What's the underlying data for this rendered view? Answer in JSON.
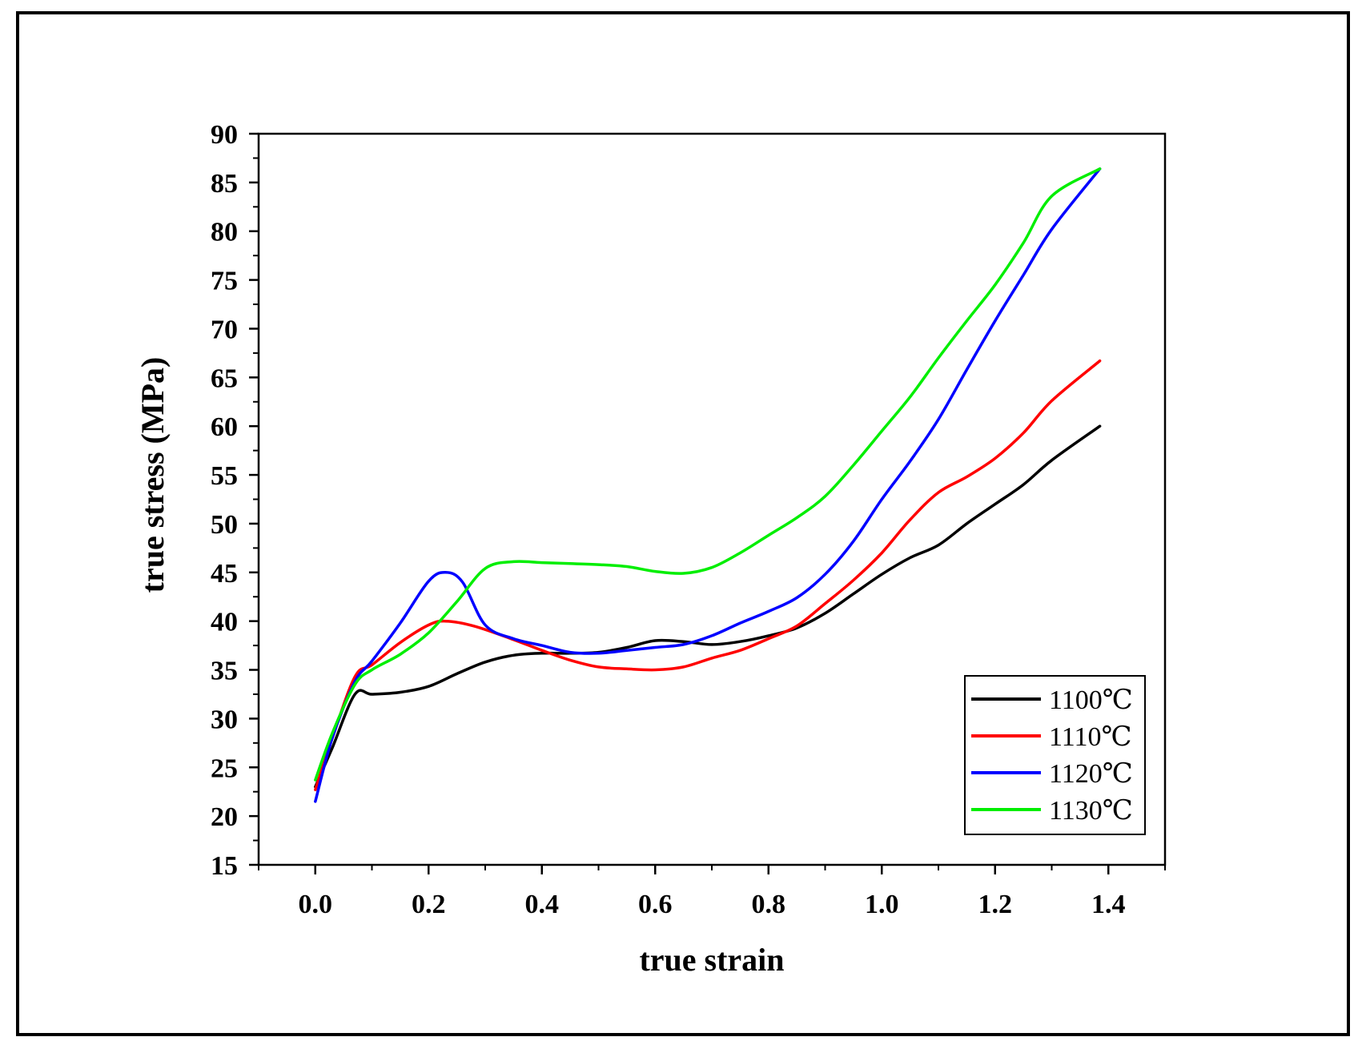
{
  "chart_data": {
    "type": "line",
    "title": "",
    "xlabel": "true strain",
    "ylabel": "true stress (MPa)",
    "xlim": [
      -0.1,
      1.5
    ],
    "ylim": [
      15,
      90
    ],
    "xticks": [
      0.0,
      0.2,
      0.4,
      0.6,
      0.8,
      1.0,
      1.2,
      1.4
    ],
    "xtick_labels": [
      "0.0",
      "0.2",
      "0.4",
      "0.6",
      "0.8",
      "1.0",
      "1.2",
      "1.4"
    ],
    "yticks": [
      15,
      20,
      25,
      30,
      35,
      40,
      45,
      50,
      55,
      60,
      65,
      70,
      75,
      80,
      85,
      90
    ],
    "ytick_labels": [
      "15",
      "20",
      "25",
      "30",
      "35",
      "40",
      "45",
      "50",
      "55",
      "60",
      "65",
      "70",
      "75",
      "80",
      "85",
      "90"
    ],
    "grid": false,
    "legend_position": "bottom-right",
    "series": [
      {
        "name": "1100℃",
        "color": "#000000",
        "x": [
          0.0,
          0.03,
          0.07,
          0.1,
          0.15,
          0.2,
          0.25,
          0.3,
          0.35,
          0.4,
          0.45,
          0.5,
          0.55,
          0.6,
          0.65,
          0.7,
          0.75,
          0.8,
          0.85,
          0.9,
          0.95,
          1.0,
          1.05,
          1.1,
          1.15,
          1.2,
          1.25,
          1.3,
          1.385
        ],
        "y": [
          23.0,
          27.0,
          32.5,
          32.5,
          32.7,
          33.3,
          34.6,
          35.8,
          36.5,
          36.7,
          36.7,
          36.8,
          37.3,
          38.0,
          37.9,
          37.6,
          37.9,
          38.5,
          39.3,
          40.8,
          42.8,
          44.8,
          46.5,
          47.8,
          50.0,
          52.0,
          54.0,
          56.5,
          60.0
        ]
      },
      {
        "name": "1110℃",
        "color": "#ff0000",
        "x": [
          0.0,
          0.03,
          0.07,
          0.1,
          0.15,
          0.2,
          0.23,
          0.28,
          0.35,
          0.4,
          0.45,
          0.5,
          0.55,
          0.6,
          0.65,
          0.7,
          0.75,
          0.8,
          0.85,
          0.9,
          0.95,
          1.0,
          1.05,
          1.1,
          1.15,
          1.2,
          1.25,
          1.3,
          1.385
        ],
        "y": [
          22.7,
          28.0,
          34.3,
          35.5,
          37.8,
          39.6,
          40.0,
          39.5,
          38.1,
          37.0,
          36.0,
          35.3,
          35.1,
          35.0,
          35.3,
          36.2,
          37.0,
          38.2,
          39.5,
          41.8,
          44.2,
          47.0,
          50.4,
          53.2,
          54.8,
          56.7,
          59.3,
          62.6,
          66.7
        ]
      },
      {
        "name": "1120℃",
        "color": "#0000ff",
        "x": [
          0.0,
          0.03,
          0.07,
          0.1,
          0.15,
          0.2,
          0.23,
          0.26,
          0.3,
          0.35,
          0.4,
          0.45,
          0.5,
          0.55,
          0.6,
          0.65,
          0.7,
          0.75,
          0.8,
          0.85,
          0.9,
          0.95,
          1.0,
          1.05,
          1.1,
          1.15,
          1.2,
          1.25,
          1.3,
          1.385
        ],
        "y": [
          21.5,
          28.0,
          33.8,
          35.9,
          39.8,
          44.1,
          45.0,
          44.0,
          39.6,
          38.2,
          37.5,
          36.8,
          36.7,
          37.0,
          37.3,
          37.6,
          38.5,
          39.8,
          41.0,
          42.4,
          44.8,
          48.2,
          52.5,
          56.4,
          60.7,
          65.8,
          70.8,
          75.5,
          80.2,
          86.4
        ]
      },
      {
        "name": "1130℃",
        "color": "#00ee00",
        "x": [
          0.0,
          0.03,
          0.07,
          0.1,
          0.15,
          0.2,
          0.25,
          0.3,
          0.35,
          0.4,
          0.45,
          0.5,
          0.55,
          0.6,
          0.65,
          0.7,
          0.75,
          0.8,
          0.85,
          0.9,
          0.95,
          1.0,
          1.05,
          1.1,
          1.15,
          1.2,
          1.25,
          1.3,
          1.385
        ],
        "y": [
          23.7,
          28.5,
          33.5,
          35.0,
          36.6,
          38.8,
          42.0,
          45.4,
          46.1,
          46.0,
          45.9,
          45.8,
          45.6,
          45.1,
          44.9,
          45.5,
          47.0,
          48.8,
          50.6,
          52.8,
          56.0,
          59.5,
          63.0,
          67.0,
          70.8,
          74.5,
          78.8,
          83.6,
          86.4
        ]
      }
    ]
  }
}
